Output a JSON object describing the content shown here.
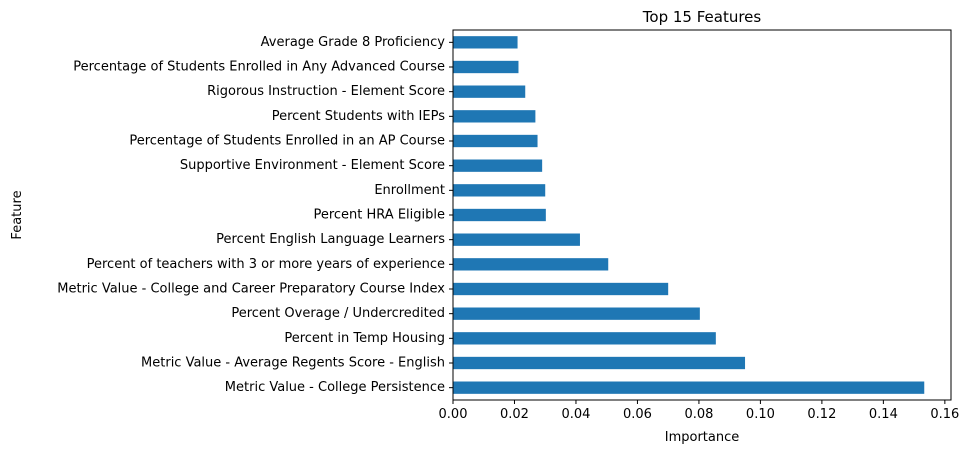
{
  "chart_data": {
    "type": "bar",
    "orientation": "horizontal",
    "title": "Top 15 Features",
    "xlabel": "Importance",
    "ylabel": "Feature",
    "xlim": [
      0,
      0.162
    ],
    "xticks": [
      "0.00",
      "0.02",
      "0.04",
      "0.06",
      "0.08",
      "0.10",
      "0.12",
      "0.14",
      "0.16"
    ],
    "bar_color": "#1f77b4",
    "grid": false,
    "categories": [
      "Average Grade 8 Proficiency",
      "Percentage of Students Enrolled in Any Advanced Course",
      "Rigorous Instruction - Element Score",
      "Percent Students with IEPs",
      "Percentage of Students Enrolled in an AP Course",
      "Supportive Environment - Element Score",
      "Enrollment",
      "Percent HRA Eligible",
      "Percent English Language Learners",
      "Percent of teachers with 3 or more years of experience",
      "Metric Value - College and Career Preparatory Course Index",
      "Percent Overage / Undercredited",
      "Percent in Temp Housing",
      "Metric Value - Average Regents Score - English",
      "Metric Value - College Persistence"
    ],
    "values": [
      0.021,
      0.0213,
      0.0235,
      0.0268,
      0.0275,
      0.029,
      0.03,
      0.0302,
      0.0413,
      0.0505,
      0.07,
      0.0803,
      0.0855,
      0.095,
      0.1533
    ]
  }
}
